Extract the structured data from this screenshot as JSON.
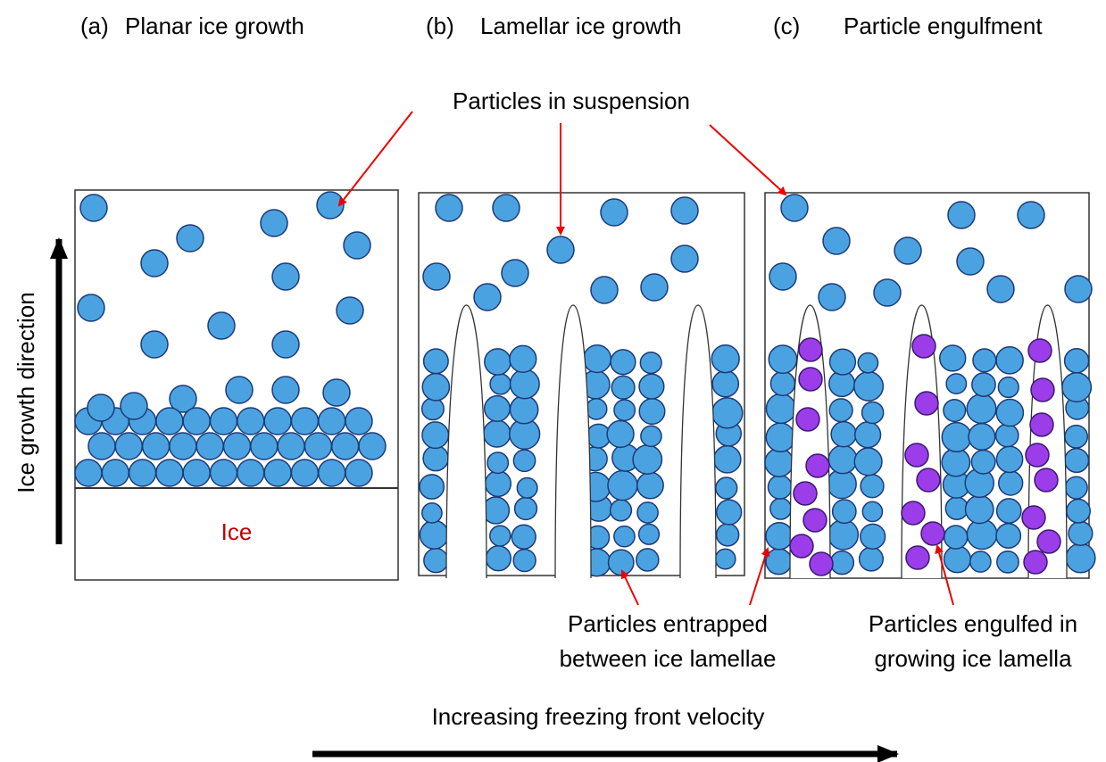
{
  "panels": [
    {
      "label": "(a)",
      "title": "Planar ice growth"
    },
    {
      "label": "(b)",
      "title": "Lamellar ice growth"
    },
    {
      "label": "(c)",
      "title": "Particle engulfment"
    }
  ],
  "annotations": {
    "suspension": "Particles in suspension",
    "ice": "Ice",
    "growth_direction": "Ice growth direction",
    "entrapped": [
      "Particles entrapped",
      "between ice lamellae"
    ],
    "engulfed": [
      "Particles engulfed in",
      "growing ice lamella"
    ],
    "velocity": "Increasing freezing front velocity"
  }
}
